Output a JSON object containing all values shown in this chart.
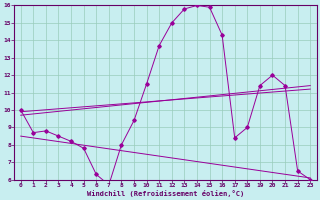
{
  "bg_color": "#c8eef0",
  "line_color": "#990099",
  "grid_color": "#99ccbb",
  "axis_color": "#660066",
  "xlabel": "Windchill (Refroidissement éolien,°C)",
  "xlim": [
    -0.5,
    23.5
  ],
  "ylim": [
    6,
    16
  ],
  "x_ticks": [
    0,
    1,
    2,
    3,
    4,
    5,
    6,
    7,
    8,
    9,
    10,
    11,
    12,
    13,
    14,
    15,
    16,
    17,
    18,
    19,
    20,
    21,
    22,
    23
  ],
  "y_ticks": [
    6,
    7,
    8,
    9,
    10,
    11,
    12,
    13,
    14,
    15,
    16
  ],
  "main_x": [
    0,
    1,
    2,
    3,
    4,
    5,
    6,
    7,
    8,
    9,
    10,
    11,
    12,
    13,
    14,
    15,
    16,
    17,
    18,
    19,
    20,
    21,
    22,
    23
  ],
  "main_y": [
    10,
    8.7,
    8.8,
    8.5,
    8.2,
    7.8,
    6.3,
    5.7,
    8.0,
    9.4,
    11.5,
    13.7,
    15.0,
    15.8,
    16.0,
    15.9,
    14.3,
    8.4,
    9.0,
    11.4,
    12.0,
    11.4,
    6.5,
    6.0
  ],
  "trend1_x": [
    0,
    23
  ],
  "trend1_y": [
    9.7,
    11.4
  ],
  "trend2_x": [
    0,
    23
  ],
  "trend2_y": [
    9.9,
    11.2
  ],
  "trend3_x": [
    0,
    23
  ],
  "trend3_y": [
    8.5,
    6.1
  ]
}
